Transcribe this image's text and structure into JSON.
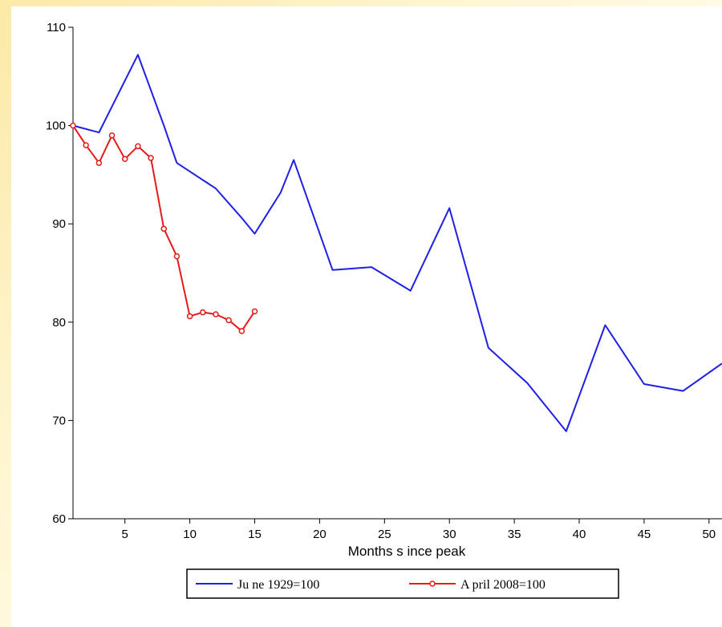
{
  "chart_data": {
    "type": "line",
    "title": "",
    "xlabel": "Months s ince peak",
    "ylabel": "",
    "xlim": [
      1,
      51
    ],
    "ylim": [
      60,
      110
    ],
    "x_ticks": [
      5,
      10,
      15,
      20,
      25,
      30,
      35,
      40,
      45,
      50
    ],
    "x_tick_labels": [
      "5",
      "10",
      "15",
      "20",
      "25",
      "30",
      "35",
      "40",
      "45",
      "50"
    ],
    "y_ticks": [
      60,
      70,
      80,
      90,
      100,
      110
    ],
    "y_tick_labels": [
      "60",
      "70",
      "80",
      "90",
      "100",
      "110"
    ],
    "grid": false,
    "legend_placement": "bottom",
    "series": [
      {
        "name": "June 1929=100",
        "legend_label": "Ju ne 1929=100",
        "color": "#1f1fe6",
        "marker": "none",
        "x": [
          1,
          3,
          6,
          8,
          9,
          12,
          14,
          15,
          17,
          18,
          21,
          24,
          27,
          30,
          33,
          36,
          39,
          42,
          45,
          48,
          51
        ],
        "y": [
          100,
          99.3,
          107.2,
          100,
          96.2,
          93.6,
          90.6,
          89,
          93.2,
          96.5,
          85.3,
          85.6,
          83.2,
          91.6,
          77.4,
          73.8,
          68.9,
          79.7,
          73.7,
          73,
          75.8
        ]
      },
      {
        "name": "April 2008=100",
        "legend_label": "A pril 2008=100",
        "color": "#e61a1a",
        "marker": "circle",
        "x": [
          1,
          2,
          3,
          4,
          5,
          6,
          7,
          8,
          9,
          10,
          11,
          12,
          13,
          14,
          15
        ],
        "y": [
          100,
          98,
          96.2,
          99,
          96.6,
          97.9,
          96.7,
          89.5,
          86.7,
          80.6,
          81,
          80.8,
          80.2,
          79.1,
          81.1
        ]
      }
    ]
  }
}
